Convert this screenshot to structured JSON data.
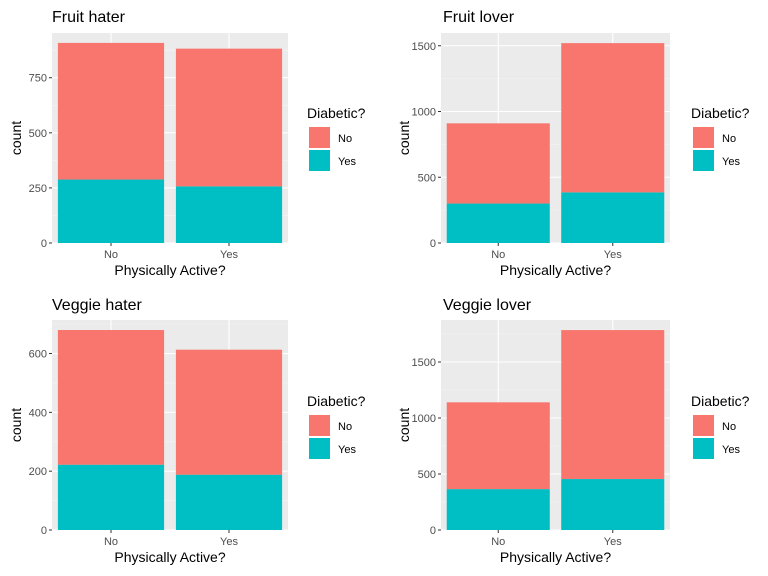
{
  "chart_data": [
    {
      "type": "bar",
      "stacked": true,
      "title": "Fruit hater",
      "xlabel": "Physically Active?",
      "ylabel": "count",
      "categories": [
        "No",
        "Yes"
      ],
      "series": [
        {
          "name": "No",
          "values": [
            620,
            625
          ]
        },
        {
          "name": "Yes",
          "values": [
            288,
            257
          ]
        }
      ],
      "ylim": [
        0,
        953
      ],
      "yticks": [
        0,
        250,
        500,
        750
      ],
      "legend": {
        "title": "Diabetic?",
        "placement": "right"
      },
      "grid": true
    },
    {
      "type": "bar",
      "stacked": true,
      "title": "Fruit lover",
      "xlabel": "Physically Active?",
      "ylabel": "count",
      "categories": [
        "No",
        "Yes"
      ],
      "series": [
        {
          "name": "No",
          "values": [
            610,
            1135
          ]
        },
        {
          "name": "Yes",
          "values": [
            300,
            385
          ]
        }
      ],
      "ylim": [
        0,
        1597
      ],
      "yticks": [
        0,
        500,
        1000,
        1500
      ],
      "legend": {
        "title": "Diabetic?",
        "placement": "right"
      },
      "grid": true
    },
    {
      "type": "bar",
      "stacked": true,
      "title": "Veggie hater",
      "xlabel": "Physically Active?",
      "ylabel": "count",
      "categories": [
        "No",
        "Yes"
      ],
      "series": [
        {
          "name": "No",
          "values": [
            458,
            425
          ]
        },
        {
          "name": "Yes",
          "values": [
            222,
            188
          ]
        }
      ],
      "ylim": [
        0,
        714
      ],
      "yticks": [
        0,
        200,
        400,
        600
      ],
      "legend": {
        "title": "Diabetic?",
        "placement": "right"
      },
      "grid": true
    },
    {
      "type": "bar",
      "stacked": true,
      "title": "Veggie lover",
      "xlabel": "Physically Active?",
      "ylabel": "count",
      "categories": [
        "No",
        "Yes"
      ],
      "series": [
        {
          "name": "No",
          "values": [
            775,
            1330
          ]
        },
        {
          "name": "Yes",
          "values": [
            365,
            455
          ]
        }
      ],
      "ylim": [
        0,
        1875
      ],
      "yticks": [
        0,
        500,
        1000,
        1500
      ],
      "legend": {
        "title": "Diabetic?",
        "placement": "right"
      },
      "grid": true
    }
  ],
  "colors": {
    "No": "#F8766D",
    "Yes": "#00BFC4",
    "panel": "#EBEBEB",
    "grid_major": "#FFFFFF",
    "text_axis": "#4D4D4D"
  }
}
